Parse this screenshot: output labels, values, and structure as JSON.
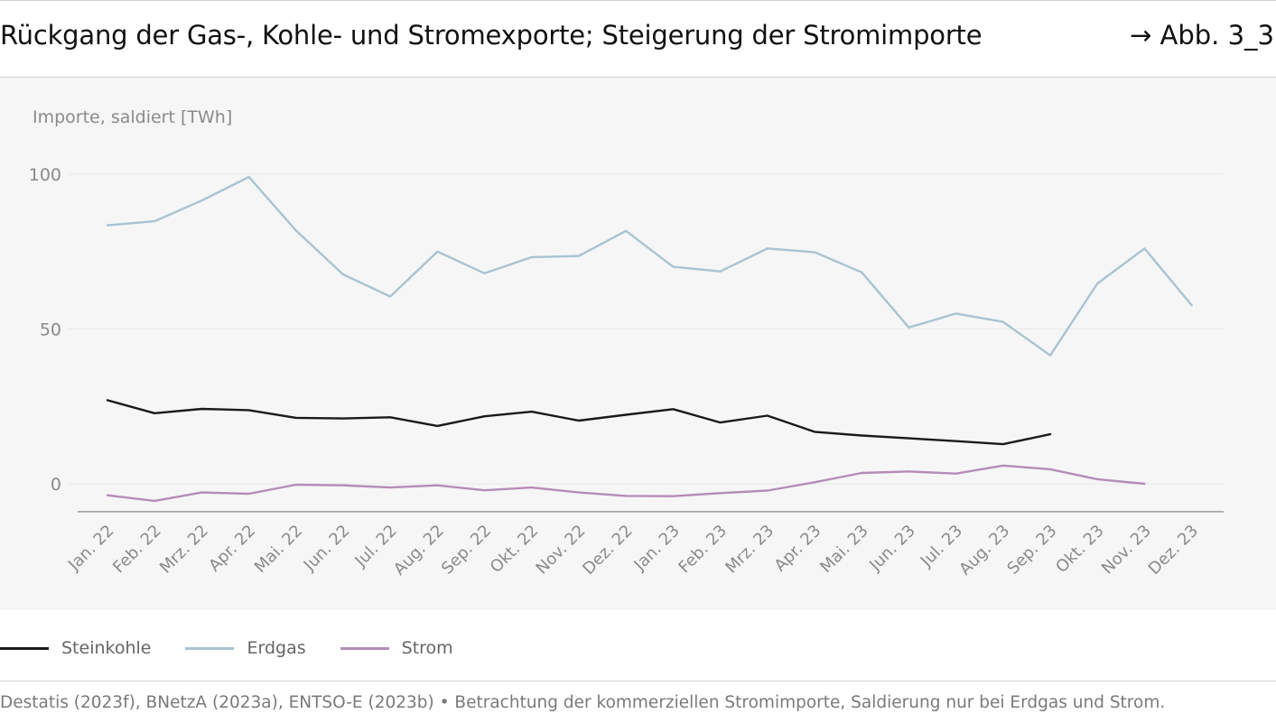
{
  "header": {
    "title": "Rückgang der Gas-, Kohle- und Stromexporte; Steigerung der Stromimporte",
    "figure_ref": "→ Abb. 3_3"
  },
  "footer": {
    "source": "Destatis (2023f), BNetzA (2023a), ENTSO-E (2023b) • Betrachtung der kommerziellen Stromimporte, Saldierung nur bei Erdgas und Strom."
  },
  "colors": {
    "Steinkohle": "#1a1a1a",
    "Erdgas": "#a8c4d1",
    "Strom": "#b58cb8",
    "panel": "#f6f6f6",
    "grid": "#e8e8e8",
    "axis": "#9a9a9a",
    "tick_text": "#8a8a8a"
  },
  "chart_data": {
    "type": "line",
    "ylabel": "Importe, saldiert [TWh]",
    "ylim": [
      -9,
      100
    ],
    "yticks": [
      0,
      50,
      100
    ],
    "grid": true,
    "legend_position": "bottom-left",
    "categories": [
      "Jan. 22",
      "Feb. 22",
      "Mrz. 22",
      "Apr. 22",
      "Mai. 22",
      "Jun. 22",
      "Jul. 22",
      "Aug. 22",
      "Sep. 22",
      "Okt. 22",
      "Nov. 22",
      "Dez. 22",
      "Jan. 23",
      "Feb. 23",
      "Mrz. 23",
      "Apr. 23",
      "Mai. 23",
      "Jun. 23",
      "Jul. 23",
      "Aug. 23",
      "Sep. 23",
      "Okt. 23",
      "Nov. 23",
      "Dez. 23"
    ],
    "series": [
      {
        "name": "Steinkohle",
        "values": [
          27,
          22.8,
          24.2,
          23.8,
          21.3,
          21.1,
          21.5,
          18.7,
          21.8,
          23.3,
          20.4,
          22.3,
          24.1,
          19.8,
          22.0,
          16.8,
          15.6,
          14.7,
          13.8,
          12.8,
          16.0,
          null,
          null,
          null
        ]
      },
      {
        "name": "Erdgas",
        "values": [
          83.5,
          84.8,
          91.5,
          99.1,
          81.8,
          67.6,
          60.5,
          75.0,
          68.0,
          73.2,
          73.6,
          81.7,
          70.1,
          68.6,
          76.0,
          74.8,
          68.3,
          50.5,
          55.0,
          52.3,
          41.5,
          64.7,
          76.0,
          57.7
        ]
      },
      {
        "name": "Strom",
        "values": [
          -3.7,
          -5.5,
          -2.8,
          -3.2,
          -0.3,
          -0.5,
          -1.2,
          -0.5,
          -2.1,
          -1.2,
          -2.8,
          -3.9,
          -4.0,
          -3.0,
          -2.2,
          0.5,
          3.5,
          4.0,
          3.3,
          5.9,
          4.7,
          1.5,
          0.0,
          null
        ]
      }
    ]
  }
}
